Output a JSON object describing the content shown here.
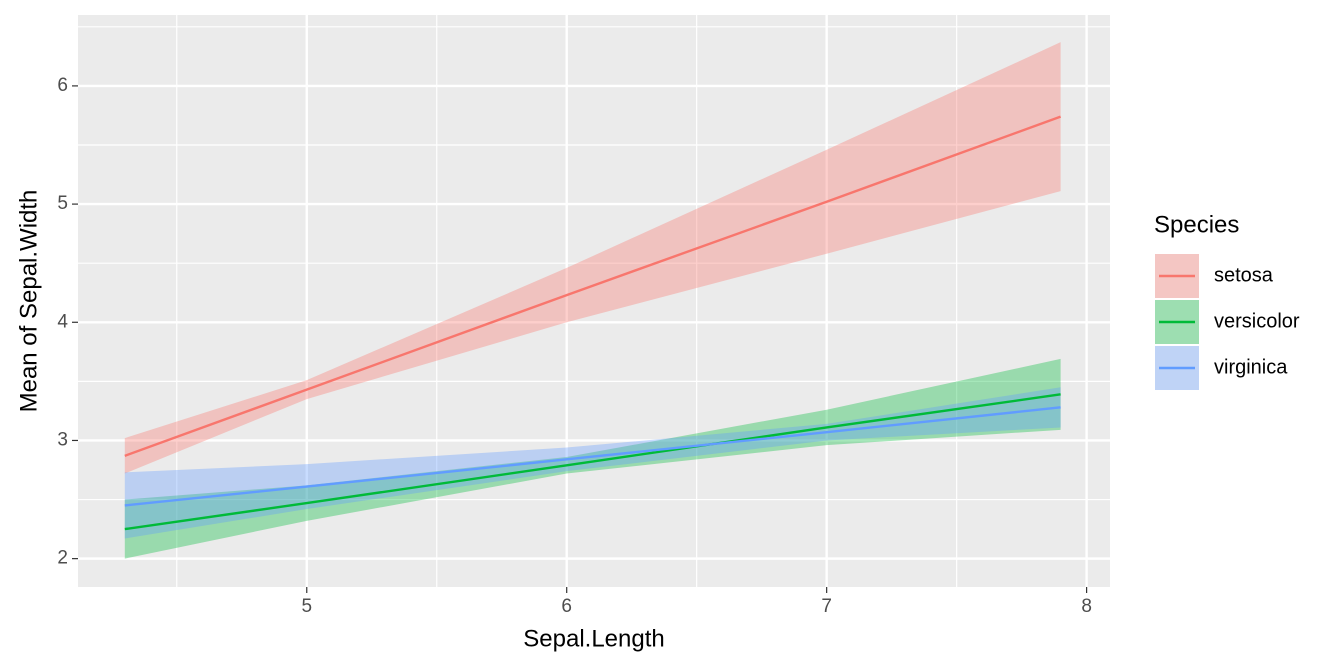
{
  "chart_data": {
    "type": "line",
    "x_label": "Sepal.Length",
    "y_label": "Mean of Sepal.Width",
    "legend_title": "Species",
    "legend_position": "right",
    "x": [
      4.3,
      5.0,
      6.0,
      7.0,
      7.9
    ],
    "series": [
      {
        "name": "setosa",
        "color": "#F8766D",
        "values": [
          2.87,
          3.43,
          4.23,
          5.02,
          5.74
        ],
        "lower": [
          2.72,
          3.35,
          4.0,
          4.58,
          5.11
        ],
        "upper": [
          3.02,
          3.51,
          4.46,
          5.46,
          6.37
        ]
      },
      {
        "name": "versicolor",
        "color": "#00BA38",
        "values": [
          2.25,
          2.47,
          2.79,
          3.11,
          3.39
        ],
        "lower": [
          2.0,
          2.32,
          2.72,
          2.96,
          3.09
        ],
        "upper": [
          2.5,
          2.62,
          2.86,
          3.26,
          3.69
        ]
      },
      {
        "name": "virginica",
        "color": "#619CFF",
        "values": [
          2.45,
          2.61,
          2.84,
          3.07,
          3.28
        ],
        "lower": [
          2.17,
          2.42,
          2.74,
          3.0,
          3.11
        ],
        "upper": [
          2.73,
          2.8,
          2.94,
          3.14,
          3.45
        ]
      }
    ],
    "xlim": [
      4.12,
      8.09
    ],
    "ylim": [
      1.76,
      6.6
    ],
    "xticks": [
      5,
      6,
      7,
      8
    ],
    "yticks": [
      2,
      3,
      4,
      5,
      6
    ],
    "grid": true
  }
}
